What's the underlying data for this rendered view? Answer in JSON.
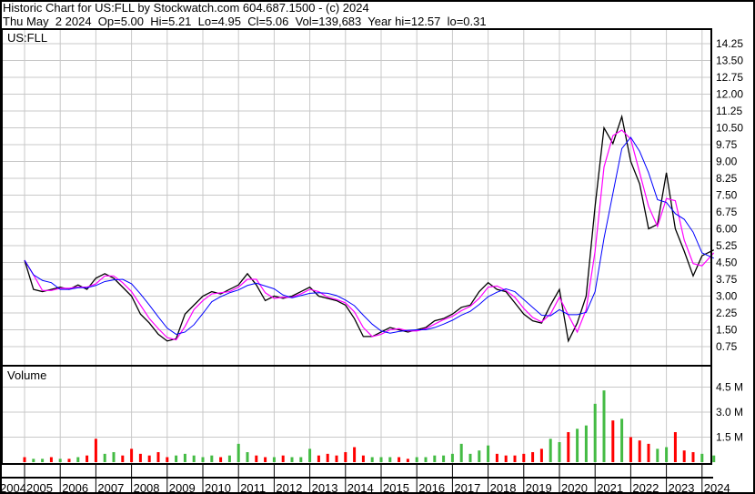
{
  "header": {
    "title": "Historic Chart for US:FLL by Stockwatch.com 604.687.1500 - (c) 2024",
    "quote": "Thu May  2 2024  Op=5.00  Hi=5.21  Lo=4.95  Cl=5.06  Vol=139,683  Year hi=12.57  lo=0.31"
  },
  "chart_data": [
    {
      "type": "line",
      "title": "US:FLL",
      "ylim": [
        0,
        14.5
      ],
      "y_ticks": [
        "0.75",
        "1.50",
        "2.25",
        "3.00",
        "3.75",
        "4.50",
        "5.25",
        "6.00",
        "6.75",
        "7.50",
        "8.25",
        "9.00",
        "9.75",
        "10.50",
        "11.25",
        "12.00",
        "12.75",
        "13.50",
        "14.25"
      ],
      "grid": true,
      "colors": {
        "price": "#000000",
        "short_ma": "#ff00ff",
        "long_ma": "#0000ff"
      },
      "x": [
        2005.0,
        2005.25,
        2005.5,
        2005.75,
        2006.0,
        2006.25,
        2006.5,
        2006.75,
        2007.0,
        2007.25,
        2007.5,
        2007.75,
        2008.0,
        2008.25,
        2008.5,
        2008.75,
        2009.0,
        2009.25,
        2009.5,
        2009.75,
        2010.0,
        2010.25,
        2010.5,
        2010.75,
        2011.0,
        2011.25,
        2011.5,
        2011.75,
        2012.0,
        2012.25,
        2012.5,
        2012.75,
        2013.0,
        2013.25,
        2013.5,
        2013.75,
        2014.0,
        2014.25,
        2014.5,
        2014.75,
        2015.0,
        2015.25,
        2015.5,
        2015.75,
        2016.0,
        2016.25,
        2016.5,
        2016.75,
        2017.0,
        2017.25,
        2017.5,
        2017.75,
        2018.0,
        2018.25,
        2018.5,
        2018.75,
        2019.0,
        2019.25,
        2019.5,
        2019.75,
        2020.0,
        2020.25,
        2020.5,
        2020.75,
        2021.0,
        2021.25,
        2021.5,
        2021.75,
        2022.0,
        2022.25,
        2022.5,
        2022.75,
        2023.0,
        2023.25,
        2023.5,
        2023.75,
        2024.0,
        2024.33
      ],
      "values": [
        4.6,
        3.3,
        3.2,
        3.3,
        3.4,
        3.3,
        3.5,
        3.3,
        3.8,
        4.0,
        3.8,
        3.4,
        3.0,
        2.2,
        1.8,
        1.3,
        1.0,
        1.1,
        2.2,
        2.6,
        3.0,
        3.2,
        3.1,
        3.3,
        3.5,
        4.0,
        3.5,
        2.8,
        3.0,
        2.9,
        3.0,
        3.2,
        3.4,
        3.0,
        2.9,
        2.8,
        2.6,
        2.0,
        1.2,
        1.2,
        1.4,
        1.6,
        1.5,
        1.4,
        1.5,
        1.6,
        1.9,
        2.0,
        2.2,
        2.5,
        2.6,
        3.2,
        3.6,
        3.3,
        3.2,
        2.7,
        2.2,
        1.9,
        1.8,
        2.6,
        3.3,
        1.0,
        1.8,
        3.0,
        7.0,
        10.5,
        9.8,
        11.0,
        9.0,
        8.0,
        6.0,
        6.2,
        8.5,
        6.0,
        5.0,
        3.9,
        4.8,
        5.06
      ]
    },
    {
      "type": "bar",
      "title": "Volume",
      "ylim": [
        0,
        5.5
      ],
      "y_ticks": [
        "1.5 M",
        "3.0 M",
        "4.5 M"
      ],
      "colors": {
        "up": "#44bb44",
        "down": "#ff0000"
      },
      "x_ticks": [
        "2004",
        "2005",
        "2006",
        "2007",
        "2008",
        "2009",
        "2010",
        "2011",
        "2012",
        "2013",
        "2014",
        "2015",
        "2016",
        "2017",
        "2018",
        "2019",
        "2020",
        "2021",
        "2022",
        "2023",
        "2024"
      ],
      "values_millions": [
        0.3,
        0.2,
        0.2,
        0.3,
        0.2,
        0.2,
        0.3,
        0.4,
        1.4,
        0.5,
        0.6,
        0.4,
        0.8,
        0.5,
        0.4,
        0.6,
        0.3,
        0.4,
        0.5,
        0.4,
        0.3,
        0.4,
        0.3,
        0.4,
        1.1,
        0.6,
        0.4,
        0.3,
        0.3,
        0.4,
        0.3,
        0.3,
        0.8,
        0.4,
        0.5,
        0.4,
        0.6,
        0.9,
        0.4,
        0.3,
        0.3,
        0.3,
        0.3,
        0.2,
        0.3,
        0.3,
        0.4,
        0.4,
        0.5,
        1.1,
        0.5,
        0.7,
        1.0,
        0.5,
        0.4,
        0.4,
        0.5,
        0.6,
        0.8,
        1.4,
        1.2,
        1.8,
        2.0,
        2.2,
        3.5,
        4.3,
        2.5,
        2.6,
        1.5,
        1.3,
        1.1,
        0.8,
        0.9,
        1.8,
        0.7,
        0.6,
        0.5,
        0.4
      ],
      "direction": [
        "down",
        "up",
        "up",
        "down",
        "up",
        "down",
        "up",
        "down",
        "down",
        "up",
        "up",
        "down",
        "down",
        "down",
        "down",
        "down",
        "down",
        "up",
        "up",
        "up",
        "up",
        "up",
        "down",
        "up",
        "up",
        "up",
        "down",
        "down",
        "up",
        "down",
        "up",
        "up",
        "up",
        "down",
        "down",
        "down",
        "down",
        "down",
        "down",
        "up",
        "up",
        "up",
        "down",
        "down",
        "up",
        "up",
        "up",
        "up",
        "up",
        "up",
        "up",
        "up",
        "up",
        "down",
        "down",
        "down",
        "down",
        "down",
        "down",
        "up",
        "up",
        "down",
        "up",
        "up",
        "up",
        "up",
        "down",
        "up",
        "down",
        "down",
        "down",
        "up",
        "up",
        "down",
        "down",
        "down",
        "up",
        "up"
      ]
    }
  ]
}
